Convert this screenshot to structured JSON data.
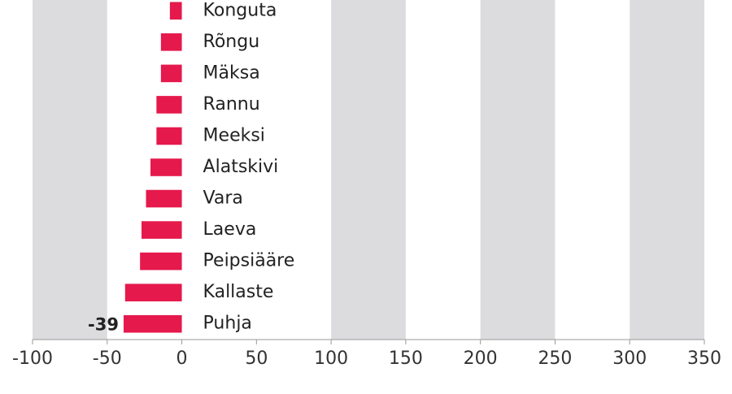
{
  "chart_data": {
    "type": "bar",
    "orientation": "horizontal",
    "categories": [
      "Konguta",
      "Rõngu",
      "Mäksa",
      "Rannu",
      "Meeksi",
      "Alatskivi",
      "Vara",
      "Laeva",
      "Peipsiääre",
      "Kallaste",
      "Puhja"
    ],
    "values": [
      -8,
      -14,
      -14,
      -17,
      -17,
      -21,
      -24,
      -27,
      -28,
      -38,
      -39
    ],
    "value_labels": [
      null,
      null,
      null,
      null,
      null,
      null,
      null,
      null,
      null,
      null,
      "-39"
    ],
    "color": "#e5194c",
    "xlim": [
      -100,
      350
    ],
    "xticks": [
      -100,
      -50,
      0,
      50,
      100,
      150,
      200,
      250,
      300,
      350
    ],
    "grid": true
  }
}
